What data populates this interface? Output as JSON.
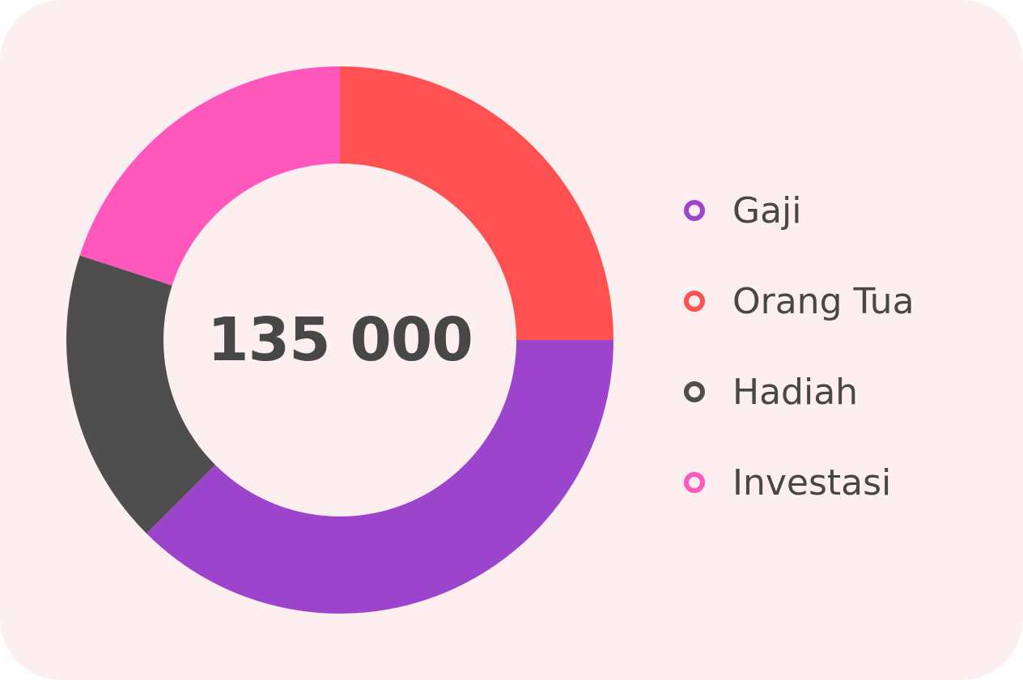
{
  "chart_data": {
    "type": "pie",
    "variant": "donut",
    "center_label": "135 000",
    "categories": [
      "Gaji",
      "Orang Tua",
      "Hadiah",
      "Investasi"
    ],
    "values": [
      37.5,
      25,
      17.5,
      20
    ],
    "start_angle_deg": 90,
    "direction": "clockwise_from_top_first_is_orang_tua",
    "slice_order": [
      "Orang Tua",
      "Gaji",
      "Hadiah",
      "Investasi"
    ],
    "colors": {
      "Gaji": "#9d44cc",
      "Orang Tua": "#ff5151",
      "Hadiah": "#4e4e4e",
      "Investasi": "#ff58bd"
    },
    "legend_position": "right"
  },
  "theme": {
    "card_background": "#fdefef",
    "text_color": "#474747"
  }
}
